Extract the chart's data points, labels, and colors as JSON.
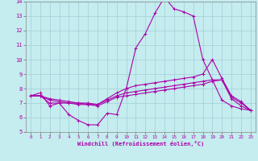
{
  "xlabel": "Windchill (Refroidissement éolien,°C)",
  "xlim": [
    -0.5,
    23.5
  ],
  "ylim": [
    5,
    14
  ],
  "xticks": [
    0,
    1,
    2,
    3,
    4,
    5,
    6,
    7,
    8,
    9,
    10,
    11,
    12,
    13,
    14,
    15,
    16,
    17,
    18,
    19,
    20,
    21,
    22,
    23
  ],
  "yticks": [
    5,
    6,
    7,
    8,
    9,
    10,
    11,
    12,
    13,
    14
  ],
  "background_color": "#c5ecee",
  "grid_color": "#a0d0d8",
  "line_color": "#aa00aa",
  "line1_x": [
    0,
    1,
    2,
    3,
    4,
    5,
    6,
    7,
    8,
    9,
    10,
    11,
    12,
    13,
    14,
    15,
    16,
    17,
    18,
    19,
    20,
    21,
    22,
    23
  ],
  "line1_y": [
    7.5,
    7.7,
    6.8,
    7.0,
    6.2,
    5.8,
    5.5,
    5.5,
    6.3,
    6.2,
    8.0,
    10.8,
    11.8,
    13.2,
    14.3,
    13.5,
    13.3,
    13.0,
    10.0,
    8.6,
    7.2,
    6.8,
    6.6,
    6.5
  ],
  "line2_x": [
    0,
    1,
    2,
    3,
    4,
    5,
    6,
    7,
    8,
    9,
    10,
    11,
    12,
    13,
    14,
    15,
    16,
    17,
    18,
    19,
    20,
    21,
    22,
    23
  ],
  "line2_y": [
    7.5,
    7.5,
    7.0,
    7.0,
    7.0,
    6.9,
    6.9,
    6.8,
    7.1,
    7.4,
    7.5,
    7.6,
    7.7,
    7.8,
    7.9,
    8.0,
    8.1,
    8.2,
    8.3,
    8.5,
    8.6,
    7.3,
    6.8,
    6.5
  ],
  "line3_x": [
    0,
    1,
    2,
    3,
    4,
    5,
    6,
    7,
    8,
    9,
    10,
    11,
    12,
    13,
    14,
    15,
    16,
    17,
    18,
    19,
    20,
    21,
    22,
    23
  ],
  "line3_y": [
    7.5,
    7.5,
    7.2,
    7.1,
    7.0,
    7.0,
    6.9,
    6.9,
    7.2,
    7.5,
    7.7,
    7.8,
    7.9,
    8.0,
    8.1,
    8.2,
    8.3,
    8.4,
    8.5,
    8.6,
    8.6,
    7.4,
    7.0,
    6.5
  ],
  "line4_x": [
    0,
    1,
    2,
    3,
    4,
    5,
    6,
    7,
    8,
    9,
    10,
    11,
    12,
    13,
    14,
    15,
    16,
    17,
    18,
    19,
    20,
    21,
    22,
    23
  ],
  "line4_y": [
    7.5,
    7.5,
    7.3,
    7.2,
    7.1,
    7.0,
    7.0,
    6.9,
    7.3,
    7.7,
    8.0,
    8.2,
    8.3,
    8.4,
    8.5,
    8.6,
    8.7,
    8.8,
    9.0,
    10.0,
    8.7,
    7.5,
    7.1,
    6.5
  ]
}
